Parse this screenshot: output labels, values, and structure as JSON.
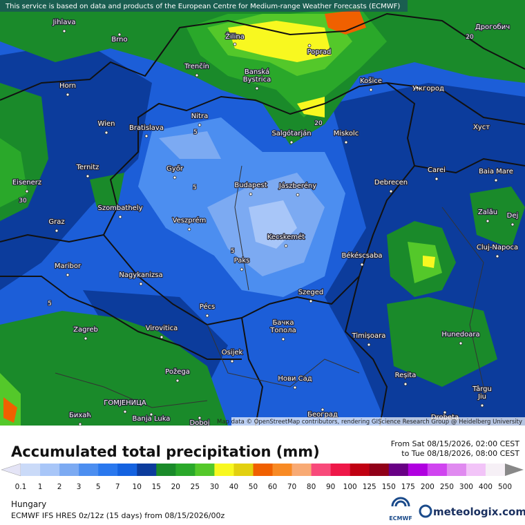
{
  "header": "This service is based on data and products of the European Centre for Medium-range Weather Forecasts (ECMWF)",
  "attribution": "Map data © OpenStreetMap contributors, rendering GIScience Research Group @ Heidelberg University",
  "title": "Accumulated total precipitation (mm)",
  "period": {
    "from": "From Sat 08/15/2026, 02:00 CEST",
    "to": "to Tue 08/18/2026, 08:00 CEST"
  },
  "region": "Hungary",
  "model": "ECMWF IFS HRES 0z/12z (15 days) from 08/15/2026/00z",
  "logos": {
    "ecmwf": "ECMWF",
    "meteologix": "meteologix.com"
  },
  "legend": {
    "labels": [
      0.1,
      1,
      2,
      3,
      5,
      7,
      10,
      15,
      20,
      25,
      30,
      40,
      50,
      60,
      70,
      80,
      90,
      100,
      125,
      150,
      175,
      200,
      250,
      300,
      400,
      500
    ],
    "colors": [
      "#e4e4f6",
      "#cadaf8",
      "#a8c6f8",
      "#7caaf2",
      "#4c8ef0",
      "#2a78ee",
      "#1462e0",
      "#0c3c9c",
      "#1a8a2a",
      "#2aa82a",
      "#54c82a",
      "#f8f820",
      "#e2d010",
      "#f06000",
      "#f88a24",
      "#f8aa74",
      "#f84a7a",
      "#ee1848",
      "#c00012",
      "#900018",
      "#680084",
      "#b000e0",
      "#d044f0",
      "#e08af0",
      "#f2c4f8",
      "#f6f0f6",
      "#d8d8d8",
      "#888888"
    ]
  },
  "places": [
    {
      "name": "Jihlava"
    },
    {
      "name": "Brno"
    },
    {
      "name": "Žilina"
    },
    {
      "name": "Poprad"
    },
    {
      "name": "Дрогобич"
    },
    {
      "name": "Trenčín"
    },
    {
      "name": "Banská"
    },
    {
      "name": "Bystrica"
    },
    {
      "name": "Košice"
    },
    {
      "name": "Ужгород"
    },
    {
      "name": "Horn"
    },
    {
      "name": "Nitra"
    },
    {
      "name": "Wien"
    },
    {
      "name": "Bratislava"
    },
    {
      "name": "Salgótarján"
    },
    {
      "name": "Miskolc"
    },
    {
      "name": "Хуст"
    },
    {
      "name": "Ternitz"
    },
    {
      "name": "Győr"
    },
    {
      "name": "Budapest"
    },
    {
      "name": "Jászberény"
    },
    {
      "name": "Debrecen"
    },
    {
      "name": "Carei"
    },
    {
      "name": "Baia Mare"
    },
    {
      "name": "Eisenerz"
    },
    {
      "name": "Szombathely"
    },
    {
      "name": "Zalău"
    },
    {
      "name": "Graz"
    },
    {
      "name": "Veszprém"
    },
    {
      "name": "Dej"
    },
    {
      "name": "Kecskemét"
    },
    {
      "name": "Cluj-Napoca"
    },
    {
      "name": "Maribor"
    },
    {
      "name": "Paks"
    },
    {
      "name": "Békéscsaba"
    },
    {
      "name": "Nagykanizsa"
    },
    {
      "name": "Szeged"
    },
    {
      "name": "Pécs"
    },
    {
      "name": "Бачка"
    },
    {
      "name": "Топола"
    },
    {
      "name": "Zagreb"
    },
    {
      "name": "Virovitica"
    },
    {
      "name": "Timișoara"
    },
    {
      "name": "Hunedoara"
    },
    {
      "name": "Osijek"
    },
    {
      "name": "Požega"
    },
    {
      "name": "Нови Сад"
    },
    {
      "name": "Reșita"
    },
    {
      "name": "ГОМЈЕНИЦА"
    },
    {
      "name": "Бихаћ"
    },
    {
      "name": "Banja Luka"
    },
    {
      "name": "Doboj"
    },
    {
      "name": "Београд"
    },
    {
      "name": "Târgu"
    },
    {
      "name": "Jiu"
    },
    {
      "name": "Drobeta"
    }
  ],
  "contour_labels": [
    "20",
    "5",
    "5",
    "30",
    "5",
    "5",
    "20"
  ]
}
